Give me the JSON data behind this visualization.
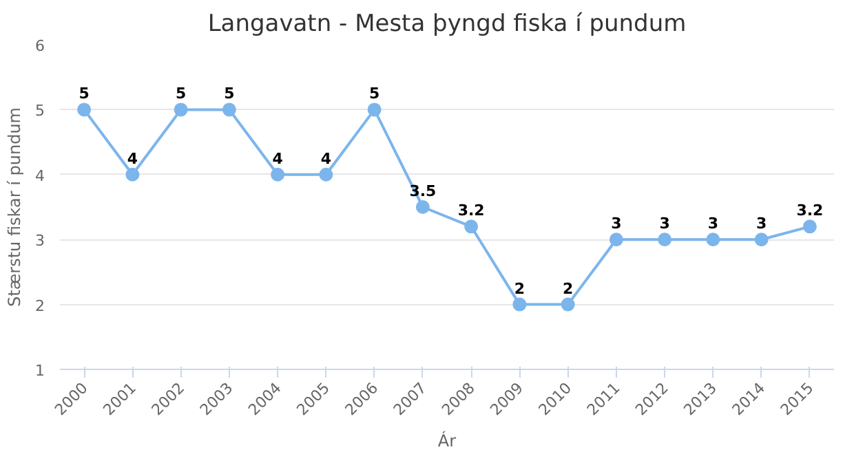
{
  "chart_data": {
    "type": "line",
    "title": "Langavatn - Mesta þyngd fiska í pundum",
    "xlabel": "Ár",
    "ylabel": "Stærstu fiskar í pundum",
    "categories": [
      "2000",
      "2001",
      "2002",
      "2003",
      "2004",
      "2005",
      "2006",
      "2007",
      "2008",
      "2009",
      "2010",
      "2011",
      "2012",
      "2013",
      "2014",
      "2015"
    ],
    "series": [
      {
        "color": "#7cb5ec",
        "values": [
          5,
          4,
          5,
          5,
          4,
          4,
          5,
          3.5,
          3.2,
          2,
          2,
          3,
          3,
          3,
          3,
          3.2
        ]
      }
    ],
    "ylim": [
      1,
      6
    ],
    "yticks": [
      1,
      2,
      3,
      4,
      5,
      6
    ],
    "grid": "y",
    "marker": "circle",
    "data_labels": true
  }
}
